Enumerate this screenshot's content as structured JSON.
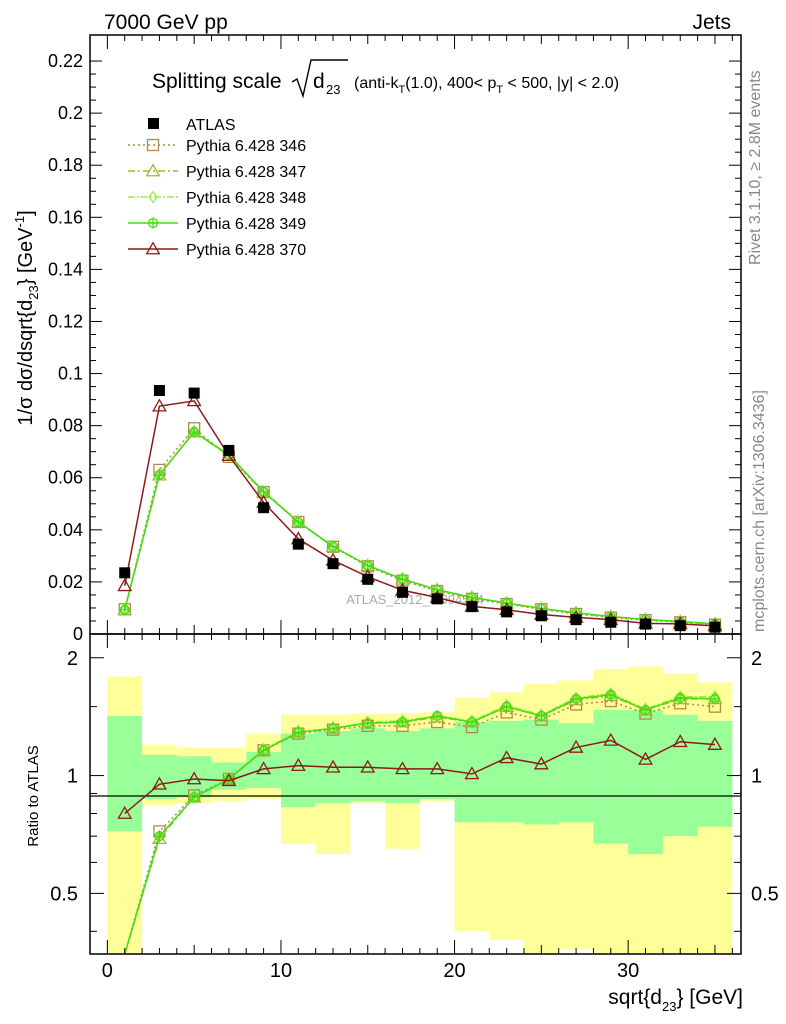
{
  "header": {
    "left": "7000 GeV pp",
    "right": "Jets",
    "rivet": "Rivet 3.1.10, ≥ 2.8M events",
    "mcplots": "mcplots.cern.ch [arXiv:1306.3436]",
    "watermark": "ATLAS_2012_I1094564"
  },
  "chart_data": {
    "type": "line",
    "title_main": "Splitting scale",
    "title_var": "d",
    "title_var_sub": "23",
    "title_rest_parts": [
      "(anti-k",
      "T",
      "(1.0), 400< p",
      "T",
      " < 500, |y| < 2.0)"
    ],
    "xlabel_main": "sqrt{d",
    "xlabel_sub": "23",
    "xlabel_end": "} [GeV]",
    "ylabel_top": "1/σ dσ/dsqrt{d",
    "ylabel_sub": "23",
    "ylabel_end": "} [GeV",
    "ylabel_sup": "-1",
    "ylabel_close": "]",
    "ylabel_ratio": "Ratio to ATLAS",
    "xlim": [
      -1,
      36.5
    ],
    "ylim_main": [
      0,
      0.23
    ],
    "ylim_ratio": [
      0.35,
      2.3
    ],
    "ratio_log": true,
    "xticks": [
      0,
      10,
      20,
      30
    ],
    "xtick_labels": [
      "0",
      "10",
      "20",
      "30"
    ],
    "yticks_main": [
      0,
      0.02,
      0.04,
      0.06,
      0.08,
      0.1,
      0.12,
      0.14,
      0.16,
      0.18,
      0.2,
      0.22
    ],
    "ytick_labels_main": [
      "0",
      "0.02",
      "0.04",
      "0.06",
      "0.08",
      "0.1",
      "0.12",
      "0.14",
      "0.16",
      "0.18",
      "0.2",
      "0.22"
    ],
    "yticks_ratio": [
      0.5,
      1,
      2
    ],
    "ytick_labels_ratio": [
      "0.5",
      "1",
      "2"
    ],
    "x": [
      1,
      3,
      5,
      7,
      9,
      11,
      13,
      15,
      17,
      19,
      21,
      23,
      25,
      27,
      29,
      31,
      33,
      35
    ],
    "bin_edges": [
      0,
      2,
      4,
      6,
      8,
      10,
      12,
      14,
      16,
      18,
      20,
      22,
      24,
      26,
      28,
      30,
      32,
      34,
      36
    ],
    "data": {
      "name": "ATLAS",
      "values": [
        0.0235,
        0.0935,
        0.0925,
        0.0705,
        0.0485,
        0.0345,
        0.027,
        0.021,
        0.016,
        0.0135,
        0.0105,
        0.0085,
        0.007,
        0.0055,
        0.0045,
        0.0038,
        0.0032,
        0.0026
      ]
    },
    "series": [
      {
        "name": "Pythia 6.428 346",
        "color": "#b8864b",
        "dash": "2,3",
        "marker": "square",
        "values": [
          0.0095,
          0.063,
          0.079,
          0.068,
          0.0545,
          0.043,
          0.0335,
          0.026,
          0.0205,
          0.0165,
          0.0135,
          0.0115,
          0.0095,
          0.0077,
          0.0063,
          0.0053,
          0.0045,
          0.0036
        ],
        "ratio": [
          0.33,
          0.72,
          0.89,
          0.98,
          1.16,
          1.28,
          1.31,
          1.34,
          1.34,
          1.37,
          1.33,
          1.45,
          1.39,
          1.52,
          1.55,
          1.44,
          1.53,
          1.5
        ]
      },
      {
        "name": "Pythia 6.428 347",
        "color": "#99bb33",
        "dash": "7,3,2,3",
        "marker": "triangle",
        "values": [
          0.0092,
          0.061,
          0.0775,
          0.0685,
          0.0545,
          0.043,
          0.0335,
          0.0262,
          0.021,
          0.017,
          0.014,
          0.0118,
          0.0097,
          0.008,
          0.0066,
          0.0055,
          0.0047,
          0.0038
        ],
        "ratio": [
          0.32,
          0.69,
          0.88,
          0.98,
          1.16,
          1.29,
          1.32,
          1.36,
          1.37,
          1.41,
          1.37,
          1.5,
          1.42,
          1.56,
          1.6,
          1.47,
          1.57,
          1.57
        ]
      },
      {
        "name": "Pythia 6.428 348",
        "color": "#99ee44",
        "dash": "7,2,2,2",
        "marker": "diamond",
        "values": [
          0.0093,
          0.0612,
          0.0778,
          0.0688,
          0.0548,
          0.0432,
          0.0337,
          0.0264,
          0.0211,
          0.0171,
          0.0141,
          0.0119,
          0.0098,
          0.0081,
          0.0067,
          0.0056,
          0.0048,
          0.0039
        ],
        "ratio": [
          0.32,
          0.7,
          0.88,
          0.98,
          1.17,
          1.29,
          1.32,
          1.37,
          1.38,
          1.42,
          1.38,
          1.51,
          1.43,
          1.58,
          1.62,
          1.48,
          1.59,
          1.59
        ]
      },
      {
        "name": "Pythia 6.428 349",
        "color": "#44dd11",
        "dash": "",
        "marker": "circle",
        "values": [
          0.0093,
          0.0611,
          0.0776,
          0.0687,
          0.0546,
          0.043,
          0.0336,
          0.0263,
          0.0211,
          0.017,
          0.014,
          0.0119,
          0.0098,
          0.0081,
          0.0067,
          0.0056,
          0.0048,
          0.0039
        ],
        "ratio": [
          0.32,
          0.7,
          0.88,
          0.98,
          1.16,
          1.29,
          1.32,
          1.36,
          1.37,
          1.42,
          1.37,
          1.5,
          1.42,
          1.57,
          1.61,
          1.47,
          1.58,
          1.57
        ]
      },
      {
        "name": "Pythia 6.428 370",
        "color": "#8b1a1a",
        "dash": "",
        "marker": "triangle-open",
        "values": [
          0.0185,
          0.0875,
          0.0895,
          0.0685,
          0.0505,
          0.0365,
          0.0283,
          0.022,
          0.0168,
          0.014,
          0.0106,
          0.0093,
          0.0075,
          0.0064,
          0.0055,
          0.0041,
          0.0039,
          0.0031
        ],
        "ratio": [
          0.8,
          0.95,
          0.98,
          0.97,
          1.04,
          1.06,
          1.05,
          1.05,
          1.04,
          1.04,
          1.01,
          1.11,
          1.07,
          1.18,
          1.23,
          1.1,
          1.22,
          1.2
        ]
      }
    ],
    "uncertainty_bands": {
      "stat_lo": [
        0.72,
        0.87,
        0.88,
        0.92,
        0.93,
        0.83,
        0.85,
        0.86,
        0.85,
        0.87,
        0.76,
        0.76,
        0.75,
        0.76,
        0.67,
        0.63,
        0.7,
        0.74
      ],
      "stat_hi": [
        1.42,
        1.13,
        1.12,
        1.08,
        1.15,
        1.28,
        1.3,
        1.32,
        1.3,
        1.32,
        1.37,
        1.38,
        1.39,
        1.36,
        1.47,
        1.47,
        1.43,
        1.38
      ],
      "total_lo": [
        0.35,
        0.84,
        0.85,
        0.86,
        0.87,
        0.67,
        0.63,
        0.85,
        0.65,
        0.86,
        0.4,
        0.38,
        0.35,
        0.36,
        0.35,
        0.35,
        0.35,
        0.35
      ],
      "total_hi": [
        1.79,
        1.2,
        1.18,
        1.18,
        1.28,
        1.43,
        1.43,
        1.44,
        1.44,
        1.45,
        1.58,
        1.63,
        1.72,
        1.75,
        1.87,
        1.9,
        1.82,
        1.73
      ]
    }
  }
}
